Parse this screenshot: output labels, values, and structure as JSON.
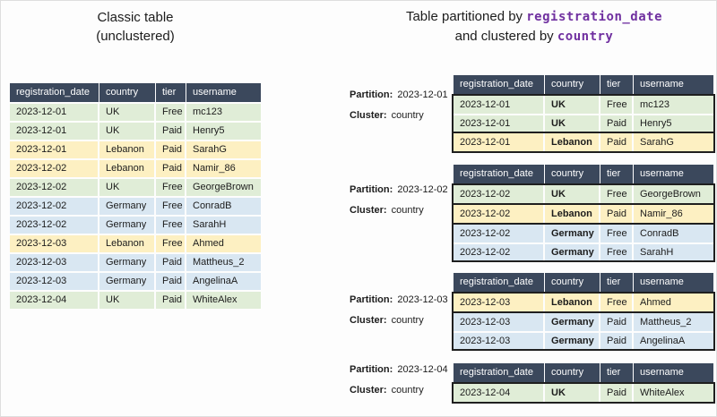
{
  "colors": {
    "header_navy": "#3b485c",
    "uk_green": "#e0edd7",
    "lebanon_yellow": "#fdf0c2",
    "germany_blue": "#d9e7f2",
    "code_purple": "#7030a0"
  },
  "columns": [
    "registration_date",
    "country",
    "tier",
    "username"
  ],
  "left": {
    "title_line1": "Classic table",
    "title_line2": "(unclustered)",
    "rows": [
      [
        "2023-12-01",
        "UK",
        "Free",
        "mc123"
      ],
      [
        "2023-12-01",
        "UK",
        "Paid",
        "Henry5"
      ],
      [
        "2023-12-01",
        "Lebanon",
        "Paid",
        "SarahG"
      ],
      [
        "2023-12-02",
        "Lebanon",
        "Paid",
        "Namir_86"
      ],
      [
        "2023-12-02",
        "UK",
        "Free",
        "GeorgeBrown"
      ],
      [
        "2023-12-02",
        "Germany",
        "Free",
        "ConradB"
      ],
      [
        "2023-12-02",
        "Germany",
        "Free",
        "SarahH"
      ],
      [
        "2023-12-03",
        "Lebanon",
        "Free",
        "Ahmed"
      ],
      [
        "2023-12-03",
        "Germany",
        "Paid",
        "Mattheus_2"
      ],
      [
        "2023-12-03",
        "Germany",
        "Paid",
        "AngelinaA"
      ],
      [
        "2023-12-04",
        "UK",
        "Paid",
        "WhiteAlex"
      ]
    ]
  },
  "right": {
    "title_text1": "Table partitioned by",
    "title_code1": "registration_date",
    "title_text2": "and clustered by",
    "title_code2": "country",
    "partition_label": "Partition:",
    "cluster_label": "Cluster:",
    "cluster_value": "country",
    "partitions": [
      {
        "date": "2023-12-01",
        "groups": [
          {
            "color": "green",
            "rows": [
              [
                "2023-12-01",
                "UK",
                "Free",
                "mc123"
              ],
              [
                "2023-12-01",
                "UK",
                "Paid",
                "Henry5"
              ]
            ]
          },
          {
            "color": "yellow",
            "rows": [
              [
                "2023-12-01",
                "Lebanon",
                "Paid",
                "SarahG"
              ]
            ]
          }
        ]
      },
      {
        "date": "2023-12-02",
        "groups": [
          {
            "color": "green",
            "rows": [
              [
                "2023-12-02",
                "UK",
                "Free",
                "GeorgeBrown"
              ]
            ]
          },
          {
            "color": "yellow",
            "rows": [
              [
                "2023-12-02",
                "Lebanon",
                "Paid",
                "Namir_86"
              ]
            ]
          },
          {
            "color": "blue",
            "rows": [
              [
                "2023-12-02",
                "Germany",
                "Free",
                "ConradB"
              ],
              [
                "2023-12-02",
                "Germany",
                "Free",
                "SarahH"
              ]
            ]
          }
        ]
      },
      {
        "date": "2023-12-03",
        "groups": [
          {
            "color": "yellow",
            "rows": [
              [
                "2023-12-03",
                "Lebanon",
                "Free",
                "Ahmed"
              ]
            ]
          },
          {
            "color": "blue",
            "rows": [
              [
                "2023-12-03",
                "Germany",
                "Paid",
                "Mattheus_2"
              ],
              [
                "2023-12-03",
                "Germany",
                "Paid",
                "AngelinaA"
              ]
            ]
          }
        ]
      },
      {
        "date": "2023-12-04",
        "groups": [
          {
            "color": "green",
            "rows": [
              [
                "2023-12-04",
                "UK",
                "Paid",
                "WhiteAlex"
              ]
            ]
          }
        ]
      }
    ]
  }
}
